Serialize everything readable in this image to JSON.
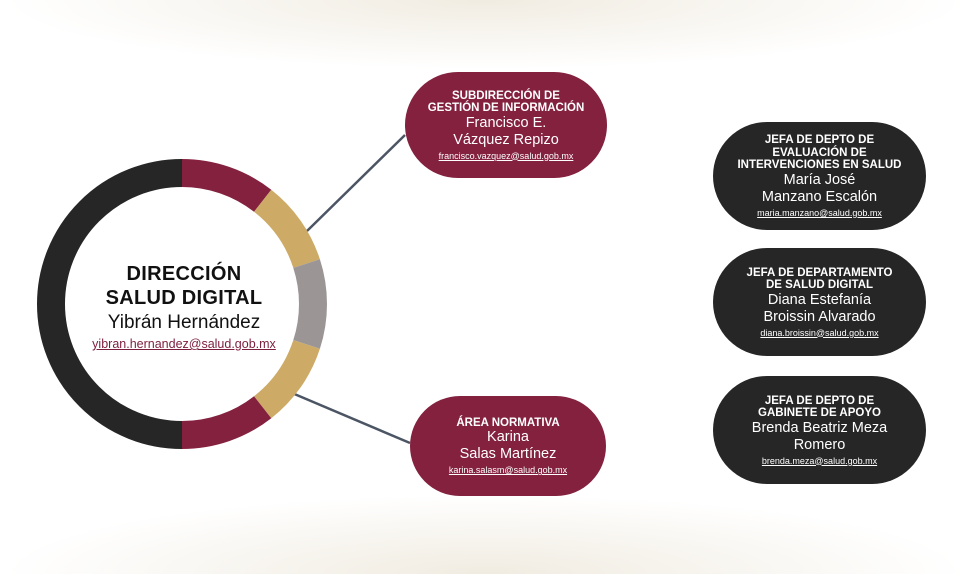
{
  "colors": {
    "maroon": "#83213f",
    "gold": "#cdab66",
    "gray": "#9b9596",
    "dark": "#262626",
    "connector": "#4b5563"
  },
  "center": {
    "title_line1": "DIRECCIÓN",
    "title_line2": "SALUD DIGITAL",
    "name": "Yibrán Hernández",
    "email": "yibran.hernandez@salud.gob.mx"
  },
  "nodes": [
    {
      "title_lines": [
        "SUBDIRECCIÓN DE",
        "GESTIÓN DE INFORMACIÓN"
      ],
      "name_lines": [
        "Francisco E.",
        "Vázquez Repizo"
      ],
      "email": "francisco.vazquez@salud.gob.mx"
    },
    {
      "title_lines": [
        "ÁREA NORMATIVA"
      ],
      "name_lines": [
        "Karina",
        "Salas Martínez"
      ],
      "email": "karina.salasm@salud.gob.mx"
    },
    {
      "title_lines": [
        "JEFA DE DEPTO DE",
        "EVALUACIÓN DE",
        "INTERVENCIONES EN SALUD"
      ],
      "name_lines": [
        "María José",
        "Manzano Escalón"
      ],
      "email": "maria.manzano@salud.gob.mx"
    },
    {
      "title_lines": [
        "JEFA DE DEPARTAMENTO",
        "DE SALUD DIGITAL"
      ],
      "name_lines": [
        "Diana Estefanía",
        "Broissin Alvarado"
      ],
      "email": "diana.broissin@salud.gob.mx"
    },
    {
      "title_lines": [
        "JEFA DE DEPTO DE",
        "GABINETE DE APOYO"
      ],
      "name_lines": [
        "Brenda Beatriz Meza",
        "Romero"
      ],
      "email": "brenda.meza@salud.gob.mx"
    }
  ]
}
